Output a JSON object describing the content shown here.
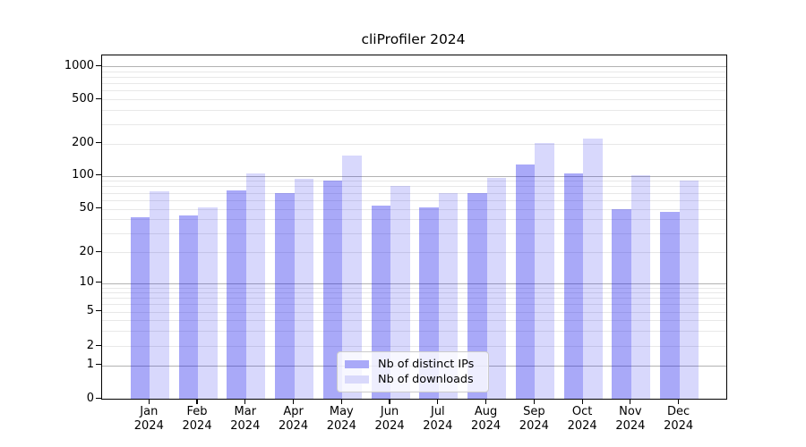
{
  "chart_data": {
    "type": "bar",
    "title": "cliProfiler 2024",
    "x": {
      "month_labels": [
        "Jan",
        "Feb",
        "Mar",
        "Apr",
        "May",
        "Jun",
        "Jul",
        "Aug",
        "Sep",
        "Oct",
        "Nov",
        "Dec"
      ],
      "year_label": "2024"
    },
    "series": [
      {
        "name": "Nb of distinct IPs",
        "fill_color": "rgba(10,10,235,0.35)",
        "legend_color": "#a9a9f8",
        "values": [
          42,
          43,
          74,
          70,
          91,
          53,
          51,
          69,
          127,
          105,
          50,
          47
        ]
      },
      {
        "name": "Nb of downloads",
        "fill_color": "rgba(10,10,235,0.16)",
        "legend_color": "#d9d9fb",
        "values": [
          72,
          51,
          104,
          93,
          153,
          81,
          69,
          95,
          201,
          222,
          101,
          90
        ]
      }
    ],
    "y_axis": {
      "scale": "symlog",
      "tick_values": [
        0,
        1,
        2,
        5,
        10,
        20,
        50,
        100,
        200,
        500,
        1000
      ],
      "tick_labels": [
        "0",
        "1",
        "2",
        "5",
        "10",
        "20",
        "50",
        "100",
        "200",
        "500",
        "1000"
      ],
      "ylim": [
        0,
        1260
      ]
    },
    "grid": {
      "shown": true,
      "major_values": [
        1,
        10,
        100,
        1000
      ],
      "minor_values": [
        2,
        3,
        4,
        5,
        6,
        7,
        8,
        9,
        20,
        30,
        40,
        50,
        60,
        70,
        80,
        90,
        200,
        300,
        400,
        500,
        600,
        700,
        800,
        900
      ],
      "major_color": "#b2b2b2",
      "minor_color": "#e8e8e8"
    },
    "legend": {
      "position": "lower center",
      "items": [
        "Nb of distinct IPs",
        "Nb of downloads"
      ]
    }
  }
}
